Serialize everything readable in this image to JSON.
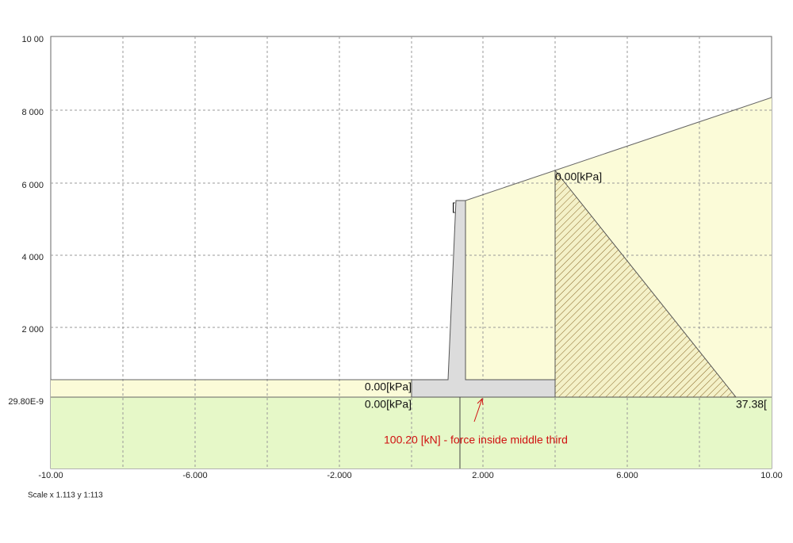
{
  "y_ticks": [
    "10 00",
    "8 000",
    "6 000",
    "4 000",
    "2 000",
    "29.80E-9"
  ],
  "x_ticks": [
    "-10.00",
    "-6.000",
    "-2.000",
    "2.000",
    "6.000",
    "10.00"
  ],
  "annotations": {
    "left_top_pressure": "0.00[kPa]",
    "left_bottom_pressure": "0.00[kPa]",
    "right_top_pressure": "0.00[kPa]",
    "right_bottom_pressure": "37.38[",
    "wall_top": "[",
    "force": "100.20 [kN] - force inside middle third"
  },
  "footer": {
    "scale": "Scale x 1.113  y 1:113"
  }
}
